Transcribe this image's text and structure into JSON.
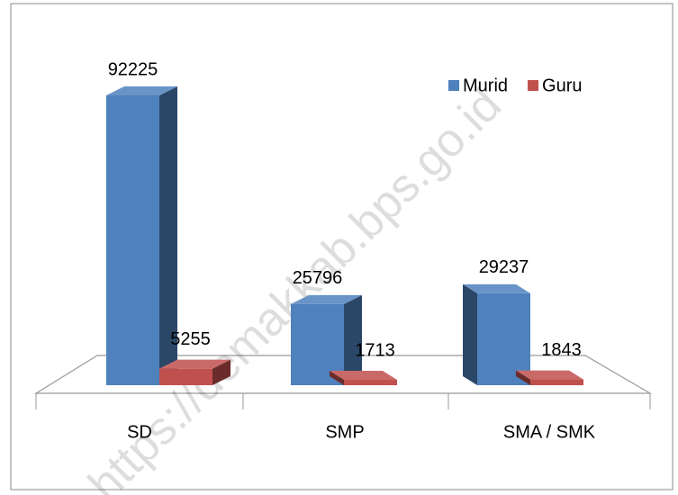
{
  "chart_data": {
    "type": "bar3d",
    "categories": [
      "SD",
      "SMP",
      "SMA / SMK"
    ],
    "series": [
      {
        "name": "Murid",
        "color": "#4f81bd",
        "values": [
          92225,
          25796,
          29237
        ]
      },
      {
        "name": "Guru",
        "color": "#c0504d",
        "values": [
          5255,
          1713,
          1843
        ]
      }
    ],
    "legend": "top-right",
    "watermark": "https://demakkab.bps.go.id"
  }
}
